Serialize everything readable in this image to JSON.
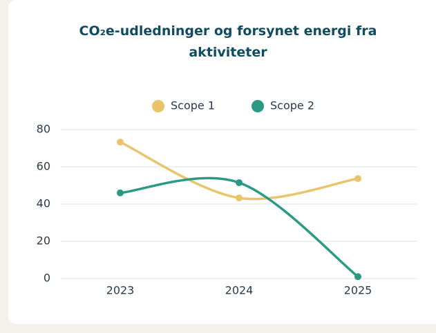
{
  "chart_data": {
    "type": "line",
    "title": "CO₂e-udledninger og forsynet energi fra aktiviteter",
    "categories": [
      "2023",
      "2024",
      "2025"
    ],
    "series": [
      {
        "name": "Scope 1",
        "color": "#e9c46a",
        "values": [
          73.3,
          43.3,
          53.7
        ]
      },
      {
        "name": "Scope 2",
        "color": "#2a9a85",
        "values": [
          46,
          51.5,
          1
        ]
      }
    ],
    "ylim": [
      0,
      80
    ],
    "yticks": [
      0,
      20,
      40,
      60,
      80
    ],
    "grid": true,
    "smooth": true,
    "legend": "top"
  }
}
